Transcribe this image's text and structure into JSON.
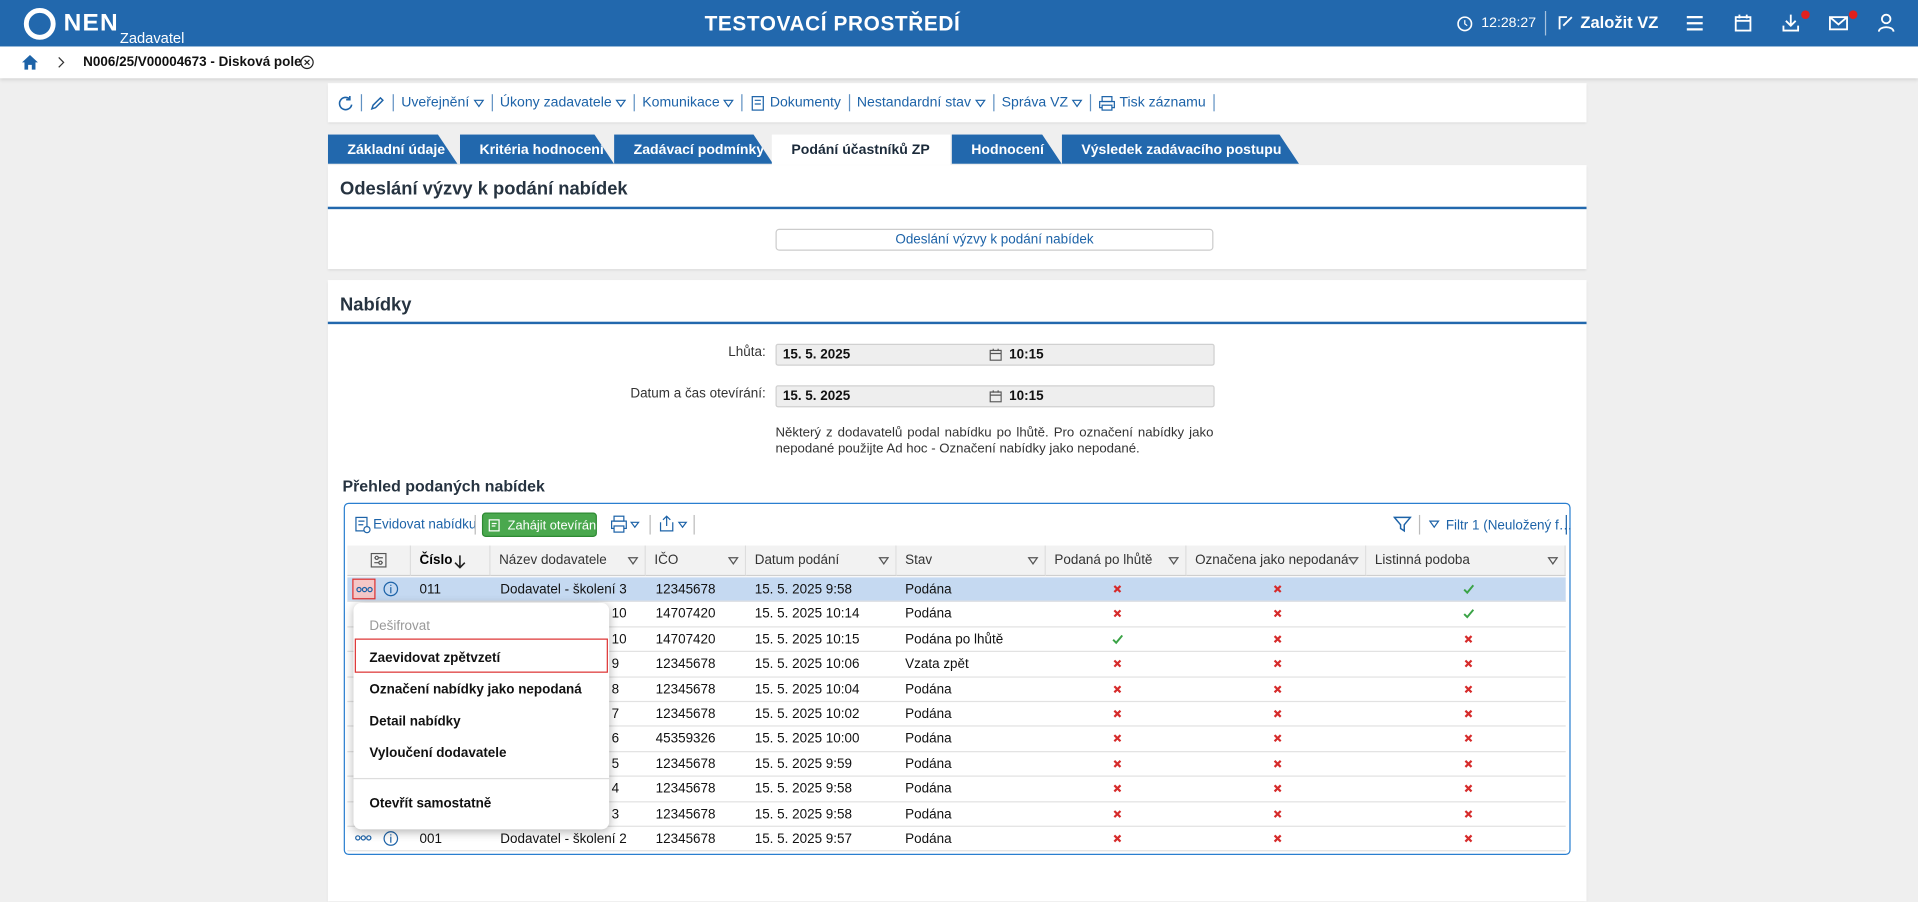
{
  "header": {
    "logo": "NEN",
    "role": "Zadavatel",
    "environment": "TESTOVACÍ PROSTŘEDÍ",
    "time": "12:28:27",
    "create_button": "Založit VZ"
  },
  "breadcrumb": {
    "title": "N006/25/V00004673 - Disková pole"
  },
  "toolbar": [
    "Uveřejnění",
    "Úkony zadavatele",
    "Komunikace",
    "Dokumenty",
    "Nestandardní stav",
    "Správa VZ",
    "Tisk záznamu"
  ],
  "tabs": [
    {
      "label": "Základní údaje"
    },
    {
      "label": "Kritéria hodnocení"
    },
    {
      "label": "Zadávací podmínky"
    },
    {
      "label": "Podání účastníků ZP",
      "active": true
    },
    {
      "label": "Hodnocení"
    },
    {
      "label": "Výsledek zadávacího postupu"
    }
  ],
  "invitation": {
    "title": "Odeslání výzvy k podání nabídek",
    "button": "Odeslání výzvy k podání nabídek"
  },
  "offers": {
    "title": "Nabídky",
    "fields": [
      {
        "label": "Lhůta:",
        "date": "15. 5. 2025",
        "time": "10:15"
      },
      {
        "label": "Datum a čas otevírání:",
        "date": "15. 5. 2025",
        "time": "10:15"
      }
    ],
    "note": "Některý z dodavatelů podal nabídku po lhůtě. Pro označení nabídky jako nepodané použijte Ad hoc - Označení nabídky jako nepodané."
  },
  "grid": {
    "title": "Přehled podaných nabídek",
    "actions": {
      "register": "Evidovat nabídku",
      "start_opening": "Zahájit otevírání",
      "filter": "Filtr 1 (Neuložený f…"
    },
    "columns": [
      "Číslo",
      "Název dodavatele",
      "IČO",
      "Datum podání",
      "Stav",
      "Podaná po lhůtě",
      "Označena jako nepodaná",
      "Listinná podoba"
    ],
    "rows": [
      {
        "cislo": "011",
        "nazev": "Dodavatel - školení 3",
        "ico": "12345678",
        "datum": "15. 5. 2025 9:58",
        "stav": "Podána",
        "po_lhute": false,
        "nepodana": false,
        "listinna": true,
        "selected": true
      },
      {
        "nazev": "10",
        "ico": "14707420",
        "datum": "15. 5. 2025 10:14",
        "stav": "Podána",
        "po_lhute": false,
        "nepodana": false,
        "listinna": true
      },
      {
        "nazev": "10",
        "ico": "14707420",
        "datum": "15. 5. 2025 10:15",
        "stav": "Podána po lhůtě",
        "po_lhute": true,
        "nepodana": false,
        "listinna": false
      },
      {
        "nazev": "9",
        "ico": "12345678",
        "datum": "15. 5. 2025 10:06",
        "stav": "Vzata zpět",
        "po_lhute": false,
        "nepodana": false,
        "listinna": false
      },
      {
        "nazev": "8",
        "ico": "12345678",
        "datum": "15. 5. 2025 10:04",
        "stav": "Podána",
        "po_lhute": false,
        "nepodana": false,
        "listinna": false
      },
      {
        "nazev": "7",
        "ico": "12345678",
        "datum": "15. 5. 2025 10:02",
        "stav": "Podána",
        "po_lhute": false,
        "nepodana": false,
        "listinna": false
      },
      {
        "nazev": "6",
        "ico": "45359326",
        "datum": "15. 5. 2025 10:00",
        "stav": "Podána",
        "po_lhute": false,
        "nepodana": false,
        "listinna": false
      },
      {
        "nazev": "5",
        "ico": "12345678",
        "datum": "15. 5. 2025 9:59",
        "stav": "Podána",
        "po_lhute": false,
        "nepodana": false,
        "listinna": false
      },
      {
        "nazev": "4",
        "ico": "12345678",
        "datum": "15. 5. 2025 9:58",
        "stav": "Podána",
        "po_lhute": false,
        "nepodana": false,
        "listinna": false
      },
      {
        "nazev": "3",
        "ico": "12345678",
        "datum": "15. 5. 2025 9:58",
        "stav": "Podána",
        "po_lhute": false,
        "nepodana": false,
        "listinna": false
      },
      {
        "cislo": "001",
        "nazev": "Dodavatel - školení 2",
        "ico": "12345678",
        "datum": "15. 5. 2025 9:57",
        "stav": "Podána",
        "po_lhute": false,
        "nepodana": false,
        "listinna": false
      }
    ]
  },
  "context_menu": {
    "items": [
      {
        "label": "Dešifrovat",
        "disabled": true
      },
      {
        "label": "Zaevidovat zpětvzetí",
        "focused": true
      },
      {
        "label": "Označení nabídky jako nepodaná"
      },
      {
        "label": "Detail nabídky"
      },
      {
        "label": "Vyloučení dodavatele"
      },
      {
        "label": "Otevřít samostatně"
      }
    ]
  }
}
